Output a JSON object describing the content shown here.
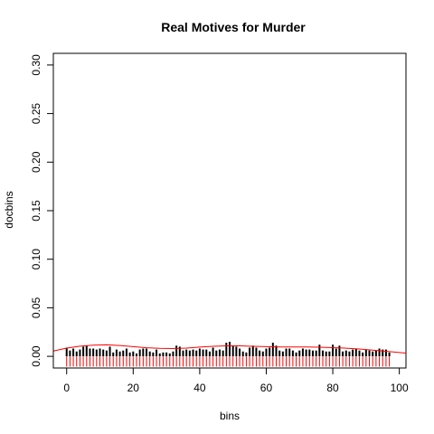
{
  "chart_data": {
    "type": "bar",
    "title": "Real Motives for Murder",
    "xlabel": "bins",
    "ylabel": "docbins",
    "xlim": [
      -4,
      102
    ],
    "ylim": [
      -0.012,
      0.312
    ],
    "x_ticks": [
      0,
      20,
      40,
      60,
      80,
      100
    ],
    "x_tick_labels": [
      "0",
      "20",
      "40",
      "60",
      "80",
      "100"
    ],
    "y_ticks": [
      0,
      0.05,
      0.1,
      0.15,
      0.2,
      0.25,
      0.3
    ],
    "y_tick_labels": [
      "0.00",
      "0.05",
      "0.10",
      "0.15",
      "0.20",
      "0.25",
      "0.30"
    ],
    "grid": false,
    "bars": {
      "x": [
        0,
        1,
        2,
        3,
        4,
        5,
        6,
        7,
        8,
        9,
        10,
        11,
        12,
        13,
        14,
        15,
        16,
        17,
        18,
        19,
        20,
        21,
        22,
        23,
        24,
        25,
        26,
        27,
        28,
        29,
        30,
        31,
        32,
        33,
        34,
        35,
        36,
        37,
        38,
        39,
        40,
        41,
        42,
        43,
        44,
        45,
        46,
        47,
        48,
        49,
        50,
        51,
        52,
        53,
        54,
        55,
        56,
        57,
        58,
        59,
        60,
        61,
        62,
        63,
        64,
        65,
        66,
        67,
        68,
        69,
        70,
        71,
        72,
        73,
        74,
        75,
        76,
        77,
        78,
        79,
        80,
        81,
        82,
        83,
        84,
        85,
        86,
        87,
        88,
        89,
        90,
        91,
        92,
        93,
        94,
        95,
        96,
        97
      ],
      "values": [
        0.009,
        0.006,
        0.008,
        0.005,
        0.007,
        0.01,
        0.011,
        0.008,
        0.008,
        0.007,
        0.008,
        0.007,
        0.006,
        0.01,
        0.004,
        0.007,
        0.005,
        0.006,
        0.008,
        0.004,
        0.005,
        0.003,
        0.007,
        0.008,
        0.008,
        0.005,
        0.004,
        0.007,
        0.003,
        0.004,
        0.004,
        0.003,
        0.005,
        0.011,
        0.01,
        0.006,
        0.007,
        0.006,
        0.007,
        0.006,
        0.008,
        0.007,
        0.007,
        0.005,
        0.009,
        0.006,
        0.007,
        0.006,
        0.014,
        0.015,
        0.011,
        0.01,
        0.008,
        0.005,
        0.004,
        0.009,
        0.011,
        0.009,
        0.006,
        0.005,
        0.008,
        0.009,
        0.014,
        0.011,
        0.006,
        0.005,
        0.008,
        0.008,
        0.006,
        0.004,
        0.006,
        0.008,
        0.007,
        0.007,
        0.006,
        0.006,
        0.012,
        0.006,
        0.005,
        0.005,
        0.012,
        0.008,
        0.011,
        0.005,
        0.006,
        0.005,
        0.007,
        0.008,
        0.006,
        0.004,
        0.007,
        0.006,
        0.005,
        0.006,
        0.008,
        0.007,
        0.007,
        0.004
      ],
      "color": "#000000"
    },
    "rug": {
      "x": [
        0,
        1,
        2,
        3,
        4,
        5,
        6,
        7,
        8,
        9,
        10,
        11,
        12,
        13,
        14,
        15,
        16,
        17,
        18,
        19,
        20,
        21,
        22,
        23,
        24,
        25,
        26,
        27,
        28,
        29,
        30,
        31,
        32,
        33,
        34,
        35,
        36,
        37,
        38,
        39,
        40,
        41,
        42,
        43,
        44,
        45,
        46,
        47,
        48,
        49,
        50,
        51,
        52,
        53,
        54,
        55,
        56,
        57,
        58,
        59,
        60,
        61,
        62,
        63,
        64,
        65,
        66,
        67,
        68,
        69,
        70,
        71,
        72,
        73,
        74,
        75,
        76,
        77,
        78,
        79,
        80,
        81,
        82,
        83,
        84,
        85,
        86,
        87,
        88,
        89,
        90,
        91,
        92,
        93,
        94,
        95,
        96,
        97
      ],
      "color": "#ff0000"
    },
    "density_curve": {
      "x": [
        -4,
        0,
        4,
        8,
        12,
        16,
        20,
        24,
        28,
        32,
        36,
        40,
        44,
        48,
        52,
        56,
        60,
        64,
        68,
        72,
        76,
        80,
        84,
        88,
        92,
        96,
        100,
        102
      ],
      "y": [
        0.0055,
        0.0085,
        0.0105,
        0.0115,
        0.0118,
        0.0112,
        0.01,
        0.0088,
        0.0082,
        0.008,
        0.0085,
        0.0095,
        0.0103,
        0.0108,
        0.0108,
        0.0104,
        0.01,
        0.0097,
        0.0096,
        0.0096,
        0.0094,
        0.009,
        0.0084,
        0.0075,
        0.0064,
        0.0052,
        0.004,
        0.0034
      ],
      "color": "#ff0000"
    }
  }
}
